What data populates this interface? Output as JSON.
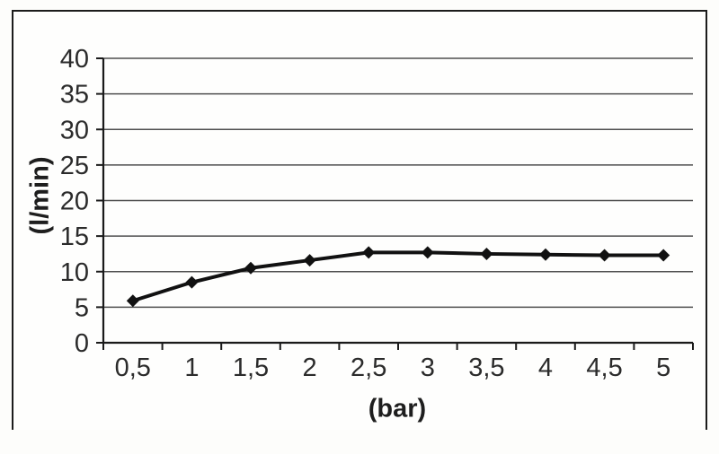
{
  "chart_data": {
    "type": "line",
    "title": "",
    "xlabel": "(bar)",
    "ylabel": "(l/min)",
    "categories": [
      "0,5",
      "1",
      "1,5",
      "2",
      "2,5",
      "3",
      "3,5",
      "4",
      "4,5",
      "5"
    ],
    "values": [
      5.9,
      8.5,
      10.5,
      11.6,
      12.7,
      12.7,
      12.5,
      12.4,
      12.3,
      12.3
    ],
    "ylim": [
      0,
      40
    ],
    "yticks": [
      0,
      5,
      10,
      15,
      20,
      25,
      30,
      35,
      40
    ],
    "grid": true,
    "legend_position": "none",
    "marker": "diamond",
    "colors": {
      "series": "#111111",
      "gridline": "#4f4f4f",
      "axis": "#1a1a1a",
      "tick_text": "#2b2b2b",
      "frame_border": "#1c1c1c",
      "plot_background": "#ffffff"
    }
  }
}
